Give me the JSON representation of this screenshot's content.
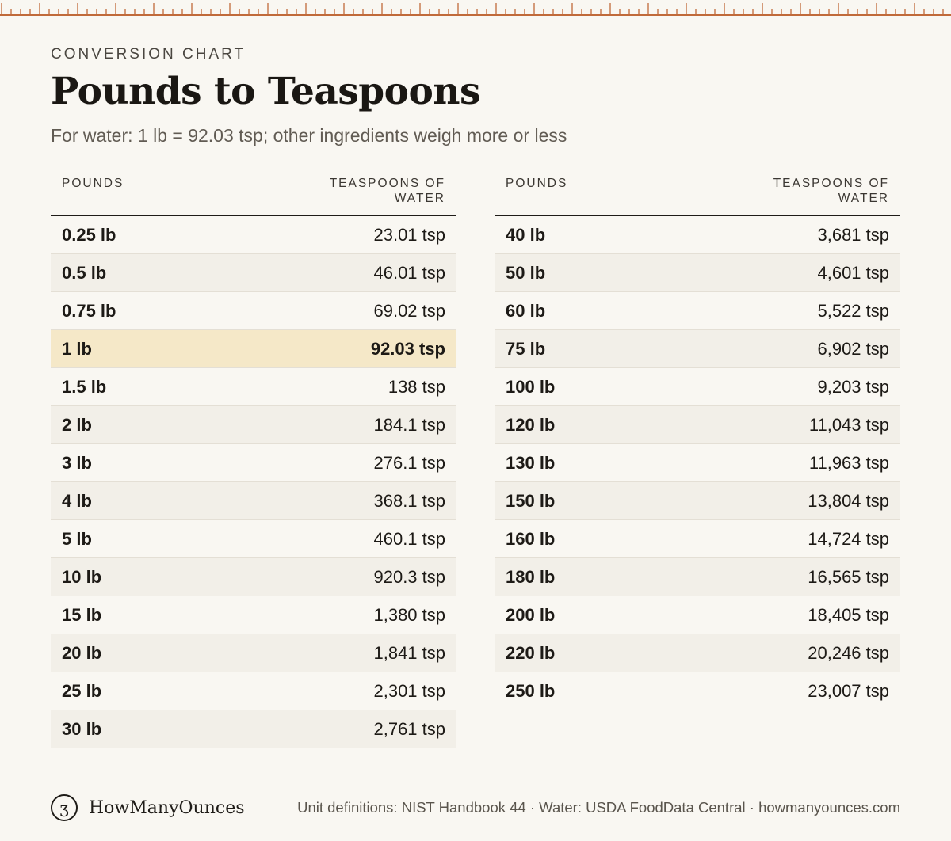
{
  "header": {
    "eyebrow": "CONVERSION CHART",
    "title": "Pounds to Teaspoons",
    "subtitle": "For water: 1 lb = 92.03 tsp; other ingredients weigh more or less"
  },
  "colors": {
    "ruler": "#c06a3a",
    "highlight_row": "#f5e8c8",
    "stripe_row": "#f2efe8",
    "background": "#f9f7f2"
  },
  "columns": {
    "pounds": "POUNDS",
    "teaspoons_line1": "TEASPOONS OF",
    "teaspoons_line2": "WATER"
  },
  "left_table": [
    {
      "lb": "0.25 lb",
      "tsp": "23.01 tsp"
    },
    {
      "lb": "0.5 lb",
      "tsp": "46.01 tsp"
    },
    {
      "lb": "0.75 lb",
      "tsp": "69.02 tsp"
    },
    {
      "lb": "1 lb",
      "tsp": "92.03 tsp",
      "highlight": true
    },
    {
      "lb": "1.5 lb",
      "tsp": "138 tsp"
    },
    {
      "lb": "2 lb",
      "tsp": "184.1 tsp"
    },
    {
      "lb": "3 lb",
      "tsp": "276.1 tsp"
    },
    {
      "lb": "4 lb",
      "tsp": "368.1 tsp"
    },
    {
      "lb": "5 lb",
      "tsp": "460.1 tsp"
    },
    {
      "lb": "10 lb",
      "tsp": "920.3 tsp"
    },
    {
      "lb": "15 lb",
      "tsp": "1,380 tsp"
    },
    {
      "lb": "20 lb",
      "tsp": "1,841 tsp"
    },
    {
      "lb": "25 lb",
      "tsp": "2,301 tsp"
    },
    {
      "lb": "30 lb",
      "tsp": "2,761 tsp"
    }
  ],
  "right_table": [
    {
      "lb": "40 lb",
      "tsp": "3,681 tsp"
    },
    {
      "lb": "50 lb",
      "tsp": "4,601 tsp"
    },
    {
      "lb": "60 lb",
      "tsp": "5,522 tsp"
    },
    {
      "lb": "75 lb",
      "tsp": "6,902 tsp"
    },
    {
      "lb": "100 lb",
      "tsp": "9,203 tsp"
    },
    {
      "lb": "120 lb",
      "tsp": "11,043 tsp"
    },
    {
      "lb": "130 lb",
      "tsp": "11,963 tsp"
    },
    {
      "lb": "150 lb",
      "tsp": "13,804 tsp"
    },
    {
      "lb": "160 lb",
      "tsp": "14,724 tsp"
    },
    {
      "lb": "180 lb",
      "tsp": "16,565 tsp"
    },
    {
      "lb": "200 lb",
      "tsp": "18,405 tsp"
    },
    {
      "lb": "220 lb",
      "tsp": "20,246 tsp"
    },
    {
      "lb": "250 lb",
      "tsp": "23,007 tsp"
    }
  ],
  "footer": {
    "logo_glyph": "ʒ",
    "brand": "HowManyOunces",
    "sources": "Unit definitions: NIST Handbook 44 · Water: USDA FoodData Central · howmanyounces.com"
  }
}
